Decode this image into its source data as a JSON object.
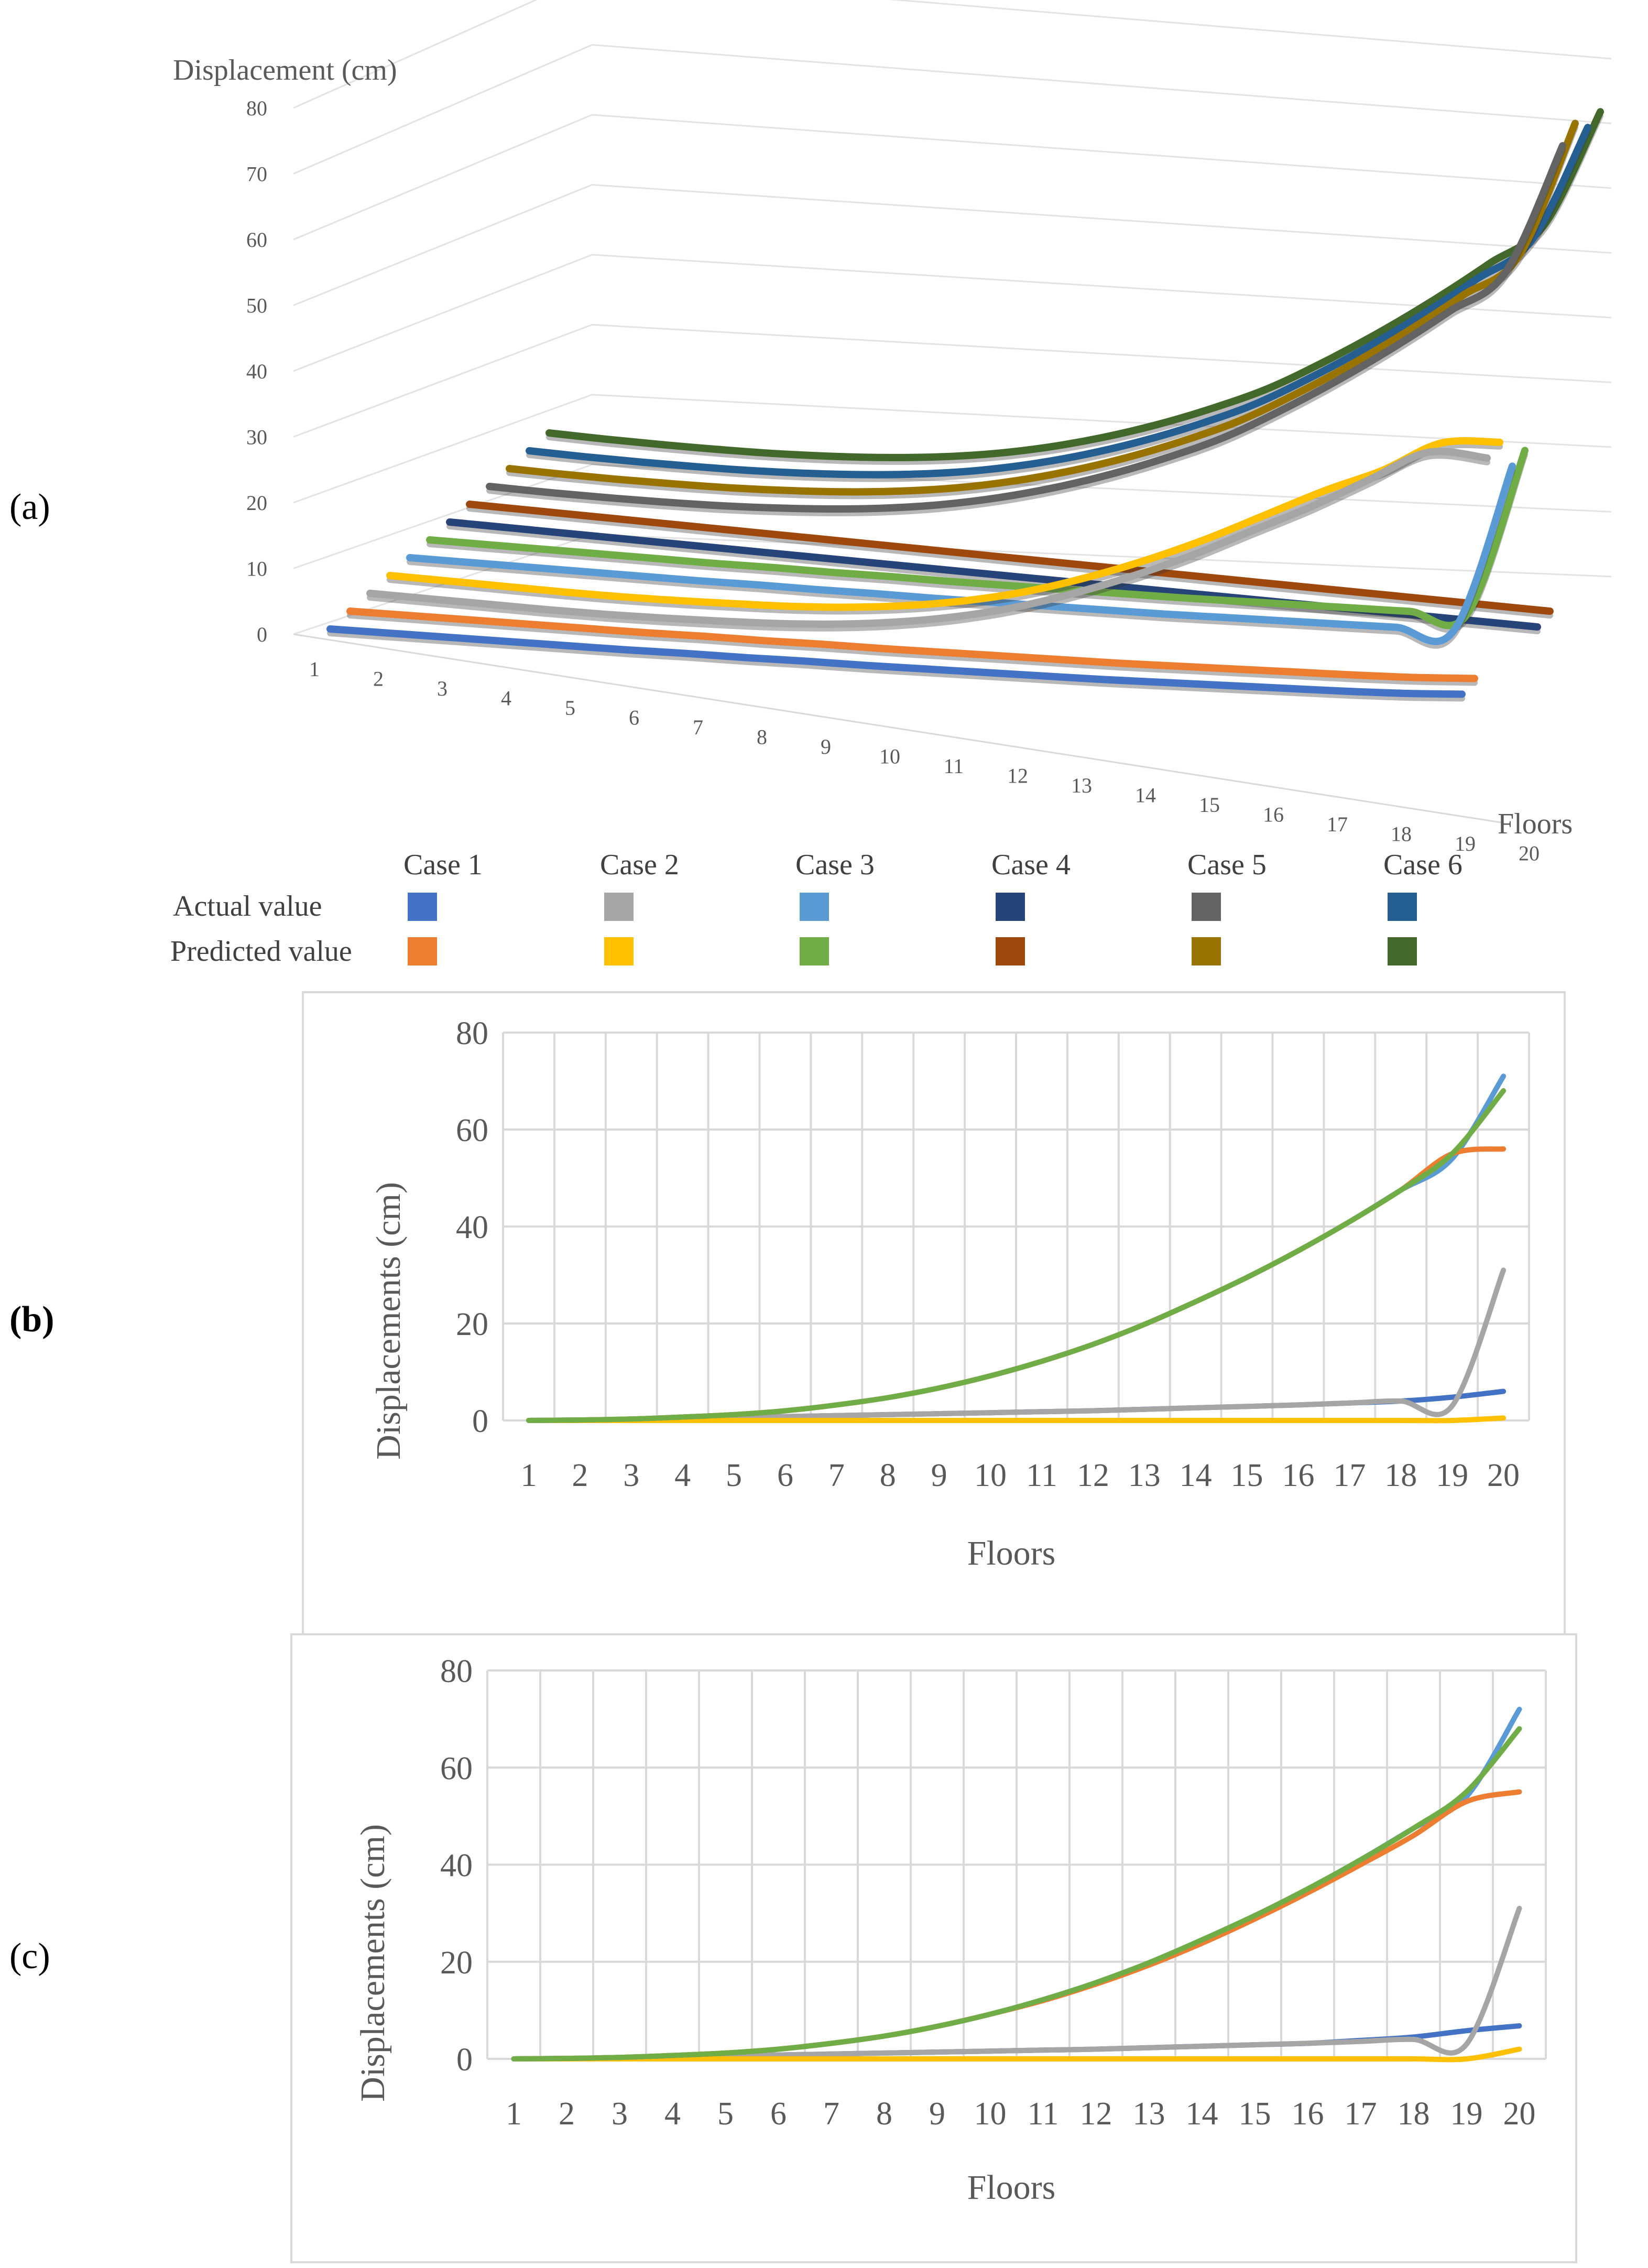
{
  "colors": {
    "case1_actual": "#4472C4",
    "case1_predicted": "#ED7D31",
    "case2_actual": "#A5A5A5",
    "case2_predicted": "#FFC000",
    "case3_actual": "#5B9BD5",
    "case3_predicted": "#70AD47",
    "case4_actual": "#264478",
    "case4_predicted": "#9E480E",
    "case5_actual": "#636363",
    "case5_predicted": "#997300",
    "case6_actual": "#255E91",
    "case6_predicted": "#43682B"
  },
  "panels": {
    "a": "(a)",
    "b": "(b)",
    "c": "(c)"
  },
  "legend": {
    "row_labels": [
      "Actual value",
      "Predicted value"
    ],
    "cases": [
      "Case 1",
      "Case 2",
      "Case 3",
      "Case 4",
      "Case 5",
      "Case 6"
    ]
  },
  "chart_data": [
    {
      "id": "a",
      "type": "line",
      "style": "3d",
      "ylabel": "Displacement (cm)",
      "xlabel": "Floors",
      "ylim": [
        0,
        80
      ],
      "yticks": [
        0,
        10,
        20,
        30,
        40,
        50,
        60,
        70,
        80
      ],
      "categories": [
        "1",
        "2",
        "3",
        "4",
        "5",
        "6",
        "7",
        "8",
        "9",
        "10",
        "11",
        "12",
        "13",
        "14",
        "15",
        "16",
        "17",
        "18",
        "19",
        "20"
      ],
      "series": [
        {
          "name": "Case 1 Actual",
          "values": [
            0,
            0.2,
            0.4,
            0.6,
            0.8,
            1.0,
            1.3,
            1.5,
            1.8,
            2.0,
            2.3,
            2.6,
            2.9,
            3.2,
            3.6,
            4.0,
            4.4,
            4.8,
            5.3,
            6.0
          ]
        },
        {
          "name": "Case 1 Predicted",
          "values": [
            0,
            0.2,
            0.4,
            0.6,
            0.8,
            1.0,
            1.3,
            1.5,
            1.8,
            2.0,
            2.3,
            2.6,
            2.9,
            3.2,
            3.6,
            4.0,
            4.4,
            4.8,
            5.3,
            6.0
          ]
        },
        {
          "name": "Case 2 Actual",
          "values": [
            0,
            0.05,
            0.1,
            0.15,
            0.3,
            0.6,
            1.0,
            1.5,
            2.3,
            3.5,
            5.2,
            7.5,
            10.5,
            14,
            18,
            22.5,
            27,
            32,
            37,
            37
          ]
        },
        {
          "name": "Case 2 Predicted",
          "values": [
            0,
            0.05,
            0.1,
            0.15,
            0.3,
            0.6,
            1.0,
            1.5,
            2.3,
            3.5,
            5.2,
            7.5,
            10.5,
            14,
            18,
            22.5,
            27,
            31,
            36,
            37
          ]
        },
        {
          "name": "Case 3 Actual",
          "values": [
            0,
            0.2,
            0.4,
            0.6,
            0.8,
            1.0,
            1.3,
            1.5,
            1.8,
            2.0,
            2.3,
            2.6,
            2.9,
            3.2,
            3.6,
            4.0,
            4.4,
            4.8,
            5.3,
            31
          ]
        },
        {
          "name": "Case 3 Predicted",
          "values": [
            0,
            0.2,
            0.4,
            0.6,
            0.8,
            1.0,
            1.3,
            1.5,
            1.8,
            2.0,
            2.3,
            2.6,
            2.9,
            3.2,
            3.6,
            4.0,
            4.4,
            4.8,
            5.3,
            31
          ]
        },
        {
          "name": "Case 4 Actual",
          "values": [
            0,
            0.1,
            0.2,
            0.3,
            0.4,
            0.5,
            0.6,
            0.7,
            0.8,
            0.9,
            1.0,
            1.1,
            1.2,
            1.3,
            1.4,
            1.5,
            1.6,
            1.7,
            1.8,
            1.9
          ]
        },
        {
          "name": "Case 4 Predicted",
          "values": [
            0,
            0.1,
            0.2,
            0.3,
            0.4,
            0.5,
            0.6,
            0.7,
            0.8,
            0.9,
            1.0,
            1.1,
            1.2,
            1.3,
            1.4,
            1.5,
            1.6,
            1.7,
            1.8,
            1.9
          ]
        },
        {
          "name": "Case 5 Actual",
          "values": [
            0,
            0.1,
            0.3,
            0.6,
            1.0,
            1.6,
            2.4,
            3.5,
            5.0,
            7.0,
            9.5,
            12.5,
            16,
            20,
            25,
            30.5,
            36.5,
            43,
            50,
            70
          ]
        },
        {
          "name": "Case 5 Predicted",
          "values": [
            0,
            0.1,
            0.3,
            0.6,
            1.0,
            1.6,
            2.4,
            3.5,
            5.0,
            7.0,
            9.5,
            12.5,
            16,
            20,
            25,
            30.5,
            36.5,
            43,
            50,
            71
          ]
        },
        {
          "name": "Case 6 Actual",
          "values": [
            0,
            0.1,
            0.3,
            0.6,
            1.0,
            1.6,
            2.4,
            3.5,
            5.0,
            7.0,
            9.5,
            12.5,
            16,
            20,
            25,
            30.5,
            36.5,
            43,
            50,
            68
          ]
        },
        {
          "name": "Case 6 Predicted",
          "values": [
            0,
            0.1,
            0.3,
            0.6,
            1.0,
            1.6,
            2.4,
            3.5,
            5.0,
            7.0,
            9.5,
            12.5,
            16,
            20,
            25,
            30.5,
            36.5,
            43,
            50,
            68
          ]
        }
      ]
    },
    {
      "id": "b",
      "type": "line",
      "ylabel": "Displacements (cm)",
      "xlabel": "Floors",
      "ylim": [
        0,
        80
      ],
      "yticks": [
        0,
        20,
        40,
        60,
        80
      ],
      "grid": true,
      "categories": [
        "1",
        "2",
        "3",
        "4",
        "5",
        "6",
        "7",
        "8",
        "9",
        "10",
        "11",
        "12",
        "13",
        "14",
        "15",
        "16",
        "17",
        "18",
        "19",
        "20"
      ],
      "series": [
        {
          "name": "Blue",
          "values": [
            0,
            0.1,
            0.2,
            0.4,
            0.6,
            0.8,
            1.0,
            1.2,
            1.4,
            1.6,
            1.8,
            2.0,
            2.3,
            2.6,
            2.9,
            3.2,
            3.6,
            4.0,
            4.8,
            6.0
          ]
        },
        {
          "name": "Gray",
          "values": [
            0,
            0.1,
            0.2,
            0.4,
            0.6,
            0.8,
            1.0,
            1.2,
            1.4,
            1.6,
            1.8,
            2.0,
            2.3,
            2.6,
            2.9,
            3.2,
            3.6,
            4.0,
            3.0,
            31
          ]
        },
        {
          "name": "Yellow",
          "values": [
            0,
            0,
            0,
            0,
            0,
            0,
            0,
            0,
            0,
            0,
            0,
            0,
            0,
            0,
            0,
            0,
            0,
            0,
            0,
            0.5
          ]
        },
        {
          "name": "Light blue",
          "values": [
            0,
            0.1,
            0.3,
            0.7,
            1.2,
            2.0,
            3.2,
            4.7,
            6.7,
            9.2,
            12.2,
            15.7,
            19.8,
            24.5,
            29.5,
            35,
            41,
            47.5,
            54,
            71
          ]
        },
        {
          "name": "Orange",
          "values": [
            0,
            0.1,
            0.3,
            0.7,
            1.2,
            2.0,
            3.2,
            4.7,
            6.7,
            9.2,
            12.2,
            15.7,
            19.8,
            24.5,
            29.5,
            35,
            41,
            47.5,
            55,
            56
          ]
        },
        {
          "name": "Green",
          "values": [
            0,
            0.1,
            0.3,
            0.7,
            1.2,
            2.0,
            3.2,
            4.7,
            6.7,
            9.2,
            12.2,
            15.7,
            19.8,
            24.5,
            29.5,
            35,
            41,
            47.5,
            55,
            68
          ]
        }
      ]
    },
    {
      "id": "c",
      "type": "line",
      "ylabel": "Displacements (cm)",
      "xlabel": "Floors",
      "ylim": [
        0,
        80
      ],
      "yticks": [
        0,
        20,
        40,
        60,
        80
      ],
      "grid": true,
      "categories": [
        "1",
        "2",
        "3",
        "4",
        "5",
        "6",
        "7",
        "8",
        "9",
        "10",
        "11",
        "12",
        "13",
        "14",
        "15",
        "16",
        "17",
        "18",
        "19",
        "20"
      ],
      "series": [
        {
          "name": "Blue",
          "values": [
            0,
            0.1,
            0.2,
            0.4,
            0.6,
            0.8,
            1.0,
            1.2,
            1.4,
            1.6,
            1.8,
            2.0,
            2.3,
            2.6,
            2.9,
            3.2,
            3.8,
            4.5,
            5.8,
            6.8
          ]
        },
        {
          "name": "Gray",
          "values": [
            0,
            0.1,
            0.2,
            0.4,
            0.6,
            0.8,
            1.0,
            1.2,
            1.4,
            1.6,
            1.8,
            2.0,
            2.3,
            2.6,
            2.9,
            3.2,
            3.6,
            4.0,
            3.0,
            31
          ]
        },
        {
          "name": "Yellow",
          "values": [
            0,
            0,
            0,
            0,
            0,
            0,
            0,
            0,
            0,
            0,
            0,
            0,
            0,
            0,
            0,
            0,
            0,
            0,
            0,
            2.0
          ]
        },
        {
          "name": "Light blue",
          "values": [
            0,
            0.1,
            0.3,
            0.7,
            1.2,
            2.0,
            3.2,
            4.7,
            6.7,
            9.2,
            12.2,
            15.7,
            19.8,
            24.5,
            29.5,
            35,
            41,
            47.5,
            54,
            72
          ]
        },
        {
          "name": "Orange",
          "values": [
            0,
            0.1,
            0.3,
            0.7,
            1.2,
            2.0,
            3.2,
            4.7,
            6.7,
            9.2,
            12.0,
            15.4,
            19.3,
            23.8,
            28.8,
            34.2,
            40,
            46,
            53,
            55
          ]
        },
        {
          "name": "Green",
          "values": [
            0,
            0.1,
            0.3,
            0.7,
            1.2,
            2.0,
            3.2,
            4.7,
            6.7,
            9.2,
            12.2,
            15.7,
            19.8,
            24.5,
            29.5,
            35,
            41,
            47.5,
            55,
            68
          ]
        }
      ]
    }
  ]
}
